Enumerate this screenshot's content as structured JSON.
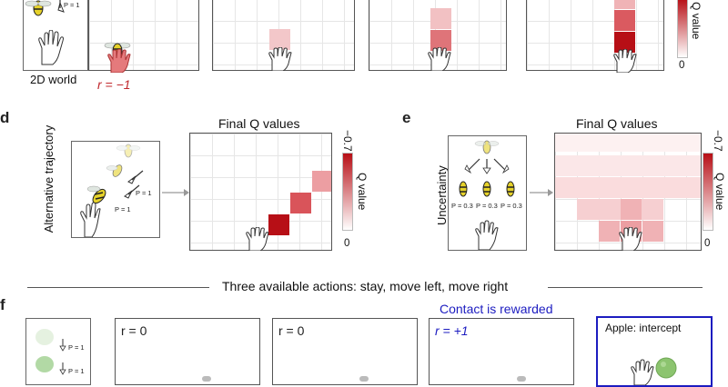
{
  "top_row": {
    "world_label": "2D world",
    "reward_label": "r = −1",
    "prob_label": "P = 1",
    "colorbar_zero": "0",
    "colorbar_axis": "Q value"
  },
  "panel_d": {
    "letter": "d",
    "side_label": "Alternative trajectory",
    "prob_a": "P = 1",
    "prob_b": "P = 1",
    "title": "Final Q values",
    "colorbar_top": "−0.7",
    "colorbar_bottom": "0",
    "colorbar_axis": "Q value"
  },
  "panel_e": {
    "letter": "e",
    "side_label": "Uncertainty",
    "probs": [
      "P = 0.3",
      "P = 0.3",
      "P = 0.3"
    ],
    "title": "Final Q values",
    "colorbar_top": "−0.7",
    "colorbar_bottom": "0",
    "colorbar_axis": "Q value"
  },
  "divider_text": "Three available actions: stay, move left, move right",
  "panel_f": {
    "letter": "f",
    "prob_a": "P = 1",
    "prob_b": "P = 1",
    "contact_text": "Contact is rewarded",
    "rewards": [
      "r = 0",
      "r = 0",
      "r = +1"
    ],
    "apple_label": "Apple: intercept"
  },
  "colors": {
    "q_dark": "#b70f16",
    "q_mid": "#d8545a",
    "q_light": "#f0b8bb",
    "reward_neg": "#c0282d",
    "reward_pos": "#1c1cc0"
  }
}
